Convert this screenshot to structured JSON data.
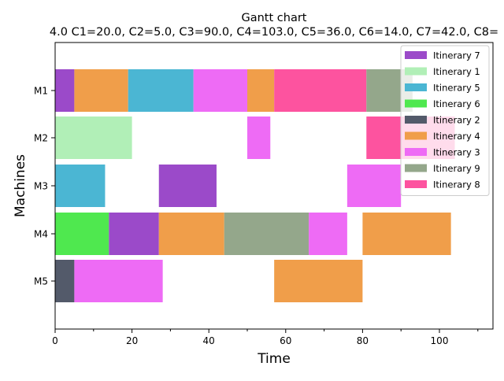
{
  "chart_data": {
    "type": "gantt",
    "title": "Gantt chart",
    "subtitle": "4.0 C1=20.0, C2=5.0, C3=90.0, C4=103.0, C5=36.0, C6=14.0, C7=42.0, C8=",
    "xlabel": "Time",
    "ylabel": "Machines",
    "xlim": [
      0,
      114
    ],
    "x_ticks": [
      0,
      20,
      40,
      60,
      80,
      100
    ],
    "x_minor_ticks": [
      10,
      30,
      50,
      70,
      90,
      110
    ],
    "machines": [
      "M1",
      "M2",
      "M3",
      "M4",
      "M5"
    ],
    "legend_position": "top-right",
    "legend": [
      {
        "name": "Itinerary 7",
        "color": "#9b4ac9"
      },
      {
        "name": "Itinerary 1",
        "color": "#b1efb7"
      },
      {
        "name": "Itinerary 5",
        "color": "#4bb6d3"
      },
      {
        "name": "Itinerary 6",
        "color": "#4fe84f"
      },
      {
        "name": "Itinerary 2",
        "color": "#535a6a"
      },
      {
        "name": "Itinerary 4",
        "color": "#f09e4a"
      },
      {
        "name": "Itinerary 3",
        "color": "#ee6bf5"
      },
      {
        "name": "Itinerary 9",
        "color": "#94a78b"
      },
      {
        "name": "Itinerary 8",
        "color": "#fd539f"
      }
    ],
    "tasks": [
      {
        "machine": "M1",
        "itinerary": "Itinerary 7",
        "start": 0,
        "end": 5
      },
      {
        "machine": "M1",
        "itinerary": "Itinerary 4",
        "start": 5,
        "end": 19
      },
      {
        "machine": "M1",
        "itinerary": "Itinerary 5",
        "start": 19,
        "end": 36
      },
      {
        "machine": "M1",
        "itinerary": "Itinerary 3",
        "start": 36,
        "end": 50
      },
      {
        "machine": "M1",
        "itinerary": "Itinerary 4",
        "start": 50,
        "end": 57
      },
      {
        "machine": "M1",
        "itinerary": "Itinerary 8",
        "start": 57,
        "end": 81
      },
      {
        "machine": "M1",
        "itinerary": "Itinerary 9",
        "start": 81,
        "end": 93
      },
      {
        "machine": "M2",
        "itinerary": "Itinerary 1",
        "start": 0,
        "end": 20
      },
      {
        "machine": "M2",
        "itinerary": "Itinerary 3",
        "start": 50,
        "end": 56
      },
      {
        "machine": "M2",
        "itinerary": "Itinerary 8",
        "start": 81,
        "end": 104
      },
      {
        "machine": "M3",
        "itinerary": "Itinerary 5",
        "start": 0,
        "end": 13
      },
      {
        "machine": "M3",
        "itinerary": "Itinerary 7",
        "start": 27,
        "end": 42
      },
      {
        "machine": "M3",
        "itinerary": "Itinerary 3",
        "start": 76,
        "end": 90
      },
      {
        "machine": "M4",
        "itinerary": "Itinerary 6",
        "start": 0,
        "end": 14
      },
      {
        "machine": "M4",
        "itinerary": "Itinerary 7",
        "start": 14,
        "end": 27
      },
      {
        "machine": "M4",
        "itinerary": "Itinerary 4",
        "start": 27,
        "end": 44
      },
      {
        "machine": "M4",
        "itinerary": "Itinerary 9",
        "start": 44,
        "end": 66
      },
      {
        "machine": "M4",
        "itinerary": "Itinerary 3",
        "start": 66,
        "end": 76
      },
      {
        "machine": "M4",
        "itinerary": "Itinerary 4",
        "start": 80,
        "end": 103
      },
      {
        "machine": "M5",
        "itinerary": "Itinerary 2",
        "start": 0,
        "end": 5
      },
      {
        "machine": "M5",
        "itinerary": "Itinerary 3",
        "start": 5,
        "end": 28
      },
      {
        "machine": "M5",
        "itinerary": "Itinerary 4",
        "start": 57,
        "end": 80
      }
    ]
  }
}
